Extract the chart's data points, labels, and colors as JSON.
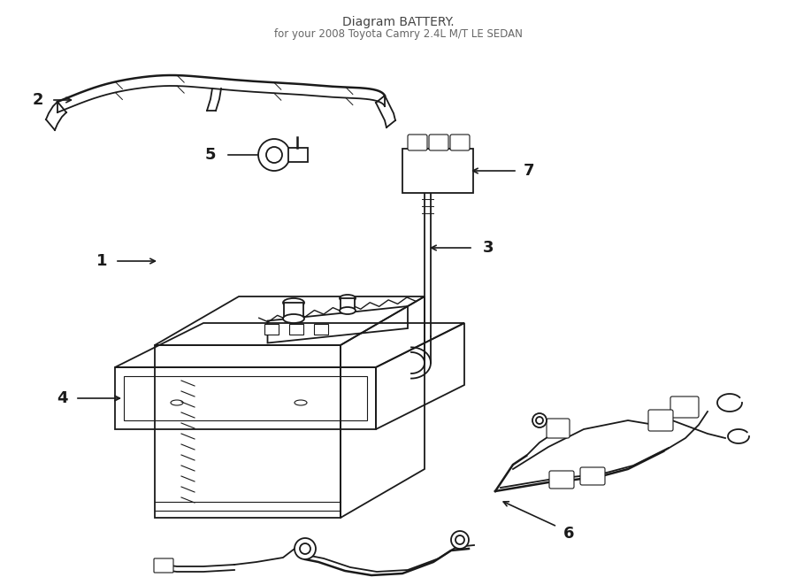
{
  "bg_color": "#ffffff",
  "line_color": "#1a1a1a",
  "figsize": [
    9.0,
    6.61
  ],
  "dpi": 100,
  "title": "Diagram BATTERY.",
  "subtitle": "for your 2008 Toyota Camry 2.4L M/T LE SEDAN"
}
